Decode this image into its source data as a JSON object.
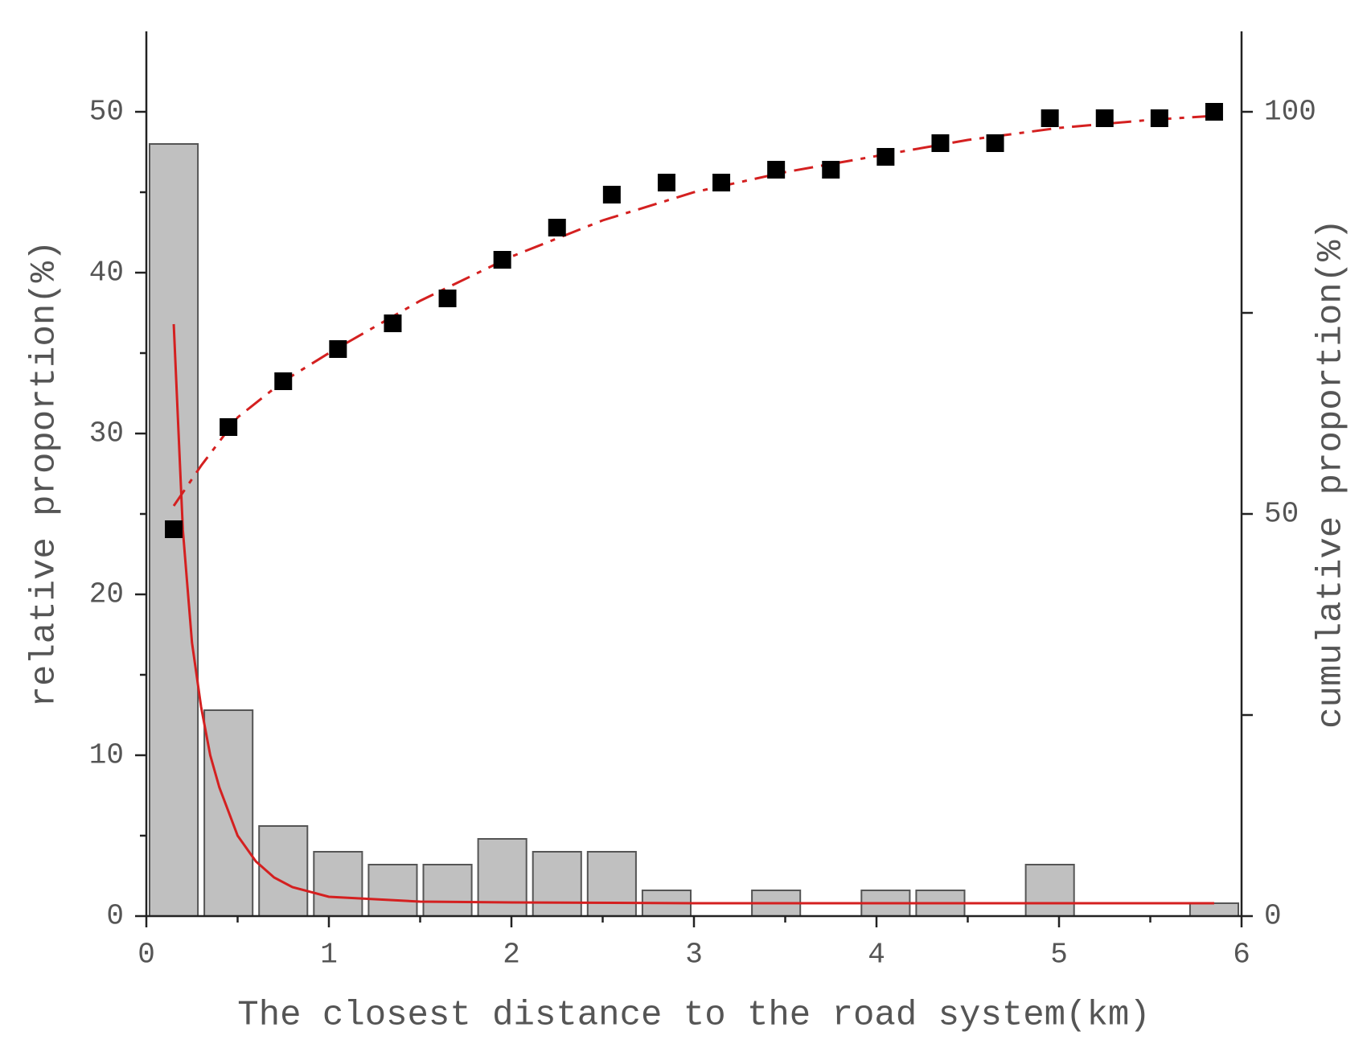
{
  "chart_data": {
    "type": "histogram",
    "xlabel": "The closest distance to the road system(km)",
    "ylabel": "relative proportion(%)",
    "y2label": "cumulative proportion(%)",
    "bins": [
      0,
      0.3,
      0.6,
      0.9,
      1.2,
      1.5,
      1.8,
      2.1,
      2.4,
      2.7,
      3.0,
      3.3,
      3.6,
      3.9,
      4.2,
      4.5,
      4.8,
      5.1,
      5.4,
      5.7,
      6.0
    ],
    "counts": [
      48,
      12.8,
      5.6,
      4,
      3.2,
      3.2,
      4.8,
      4,
      4,
      1.6,
      0,
      1.6,
      0,
      1.6,
      1.6,
      0,
      3.2,
      0,
      0,
      0.8
    ],
    "bar_color": "#c0c0c0",
    "cumulative": {
      "axis": "y2",
      "color": "#000000",
      "x": [
        0.15,
        0.45,
        0.75,
        1.05,
        1.35,
        1.65,
        1.95,
        2.25,
        2.55,
        2.85,
        3.15,
        3.45,
        3.75,
        4.05,
        4.35,
        4.65,
        4.95,
        5.25,
        5.55,
        5.85
      ],
      "values": [
        48.1,
        60.8,
        66.5,
        70.5,
        73.7,
        76.8,
        81.6,
        85.6,
        89.7,
        91.2,
        91.2,
        92.8,
        92.8,
        94.4,
        96.1,
        96.1,
        99.2,
        99.2,
        99.2,
        100
      ]
    },
    "fit_relative": {
      "color": "#d42020",
      "x": [
        0.15,
        0.2,
        0.25,
        0.3,
        0.35,
        0.4,
        0.5,
        0.6,
        0.7,
        0.8,
        1,
        1.5,
        2,
        3,
        4,
        5,
        5.85
      ],
      "values": [
        36.8,
        24,
        17,
        13,
        10,
        8,
        5,
        3.4,
        2.4,
        1.8,
        1.2,
        0.9,
        0.85,
        0.8,
        0.8,
        0.8,
        0.8
      ]
    },
    "fit_cumulative": {
      "axis": "y2",
      "color": "#d42020",
      "dash": "24,10,6,10",
      "x": [
        0.15,
        0.3,
        0.5,
        0.75,
        1,
        1.5,
        2,
        2.5,
        3,
        3.5,
        4,
        4.5,
        5,
        5.5,
        5.85
      ],
      "values": [
        51,
        56,
        62,
        66.5,
        70,
        76.5,
        82,
        86.5,
        90,
        92.5,
        94.5,
        96.5,
        98,
        99,
        99.5
      ]
    },
    "xlim": [
      0,
      6
    ],
    "xticks": [
      0,
      1,
      2,
      3,
      4,
      5,
      6
    ],
    "xminor": [
      0.5,
      1.5,
      2.5,
      3.5,
      4.5,
      5.5
    ],
    "ylim": [
      0,
      55
    ],
    "yticks": [
      0,
      10,
      20,
      30,
      40,
      50
    ],
    "yminor": [
      5,
      15,
      25,
      35,
      45
    ],
    "y2lim": [
      0,
      110
    ],
    "y2ticks": [
      0,
      50,
      100
    ],
    "y2minor": [
      25,
      75
    ]
  }
}
